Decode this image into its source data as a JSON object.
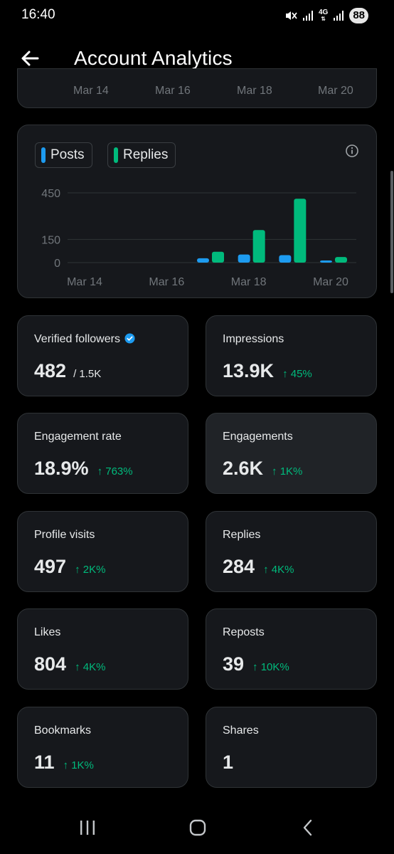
{
  "status_bar": {
    "time": "16:40",
    "network": "4G",
    "battery": "88",
    "icons": [
      "mute-icon",
      "signal-icon",
      "network-arrows-icon",
      "signal-icon",
      "battery-icon"
    ]
  },
  "header": {
    "title": "Account Analytics",
    "back_icon": "arrow-left-icon"
  },
  "top_axis": {
    "ticks": [
      "Mar 14",
      "Mar 16",
      "Mar 18",
      "Mar 20"
    ]
  },
  "legend": {
    "posts": "Posts",
    "replies": "Replies"
  },
  "colors": {
    "posts": "#1d9bf0",
    "replies": "#00ba7c",
    "change_positive": "#00ba7c",
    "card_bg": "#16181c",
    "card_border": "#2f3336",
    "verified": "#1d9bf0"
  },
  "chart_data": {
    "type": "bar",
    "categories": [
      "Mar 14",
      "Mar 15",
      "Mar 16",
      "Mar 17",
      "Mar 18",
      "Mar 19",
      "Mar 20"
    ],
    "series": [
      {
        "name": "Posts",
        "values": [
          0,
          0,
          0,
          28,
          52,
          48,
          14
        ]
      },
      {
        "name": "Replies",
        "values": [
          0,
          0,
          0,
          70,
          210,
          412,
          36
        ]
      }
    ],
    "y_ticks": [
      0,
      150,
      450
    ],
    "x_ticks": [
      "Mar 14",
      "Mar 16",
      "Mar 18",
      "Mar 20"
    ],
    "ylim": [
      0,
      450
    ],
    "grid": true,
    "legend_position": "top-left"
  },
  "stats": [
    {
      "title": "Verified followers",
      "value": "482",
      "sub": "/ 1.5K",
      "change": "",
      "verified": true
    },
    {
      "title": "Impressions",
      "value": "13.9K",
      "sub": "",
      "change": "↑ 45%"
    },
    {
      "title": "Engagement rate",
      "value": "18.9%",
      "sub": "",
      "change": "↑ 763%"
    },
    {
      "title": "Engagements",
      "value": "2.6K",
      "sub": "",
      "change": "↑ 1K%",
      "highlighted": true
    },
    {
      "title": "Profile visits",
      "value": "497",
      "sub": "",
      "change": "↑ 2K%"
    },
    {
      "title": "Replies",
      "value": "284",
      "sub": "",
      "change": "↑ 4K%"
    },
    {
      "title": "Likes",
      "value": "804",
      "sub": "",
      "change": "↑ 4K%"
    },
    {
      "title": "Reposts",
      "value": "39",
      "sub": "",
      "change": "↑ 10K%"
    },
    {
      "title": "Bookmarks",
      "value": "11",
      "sub": "",
      "change": "↑ 1K%"
    },
    {
      "title": "Shares",
      "value": "1",
      "sub": "",
      "change": ""
    }
  ],
  "nav_bar": {
    "buttons": [
      "recent-apps-icon",
      "home-icon",
      "back-icon"
    ]
  }
}
